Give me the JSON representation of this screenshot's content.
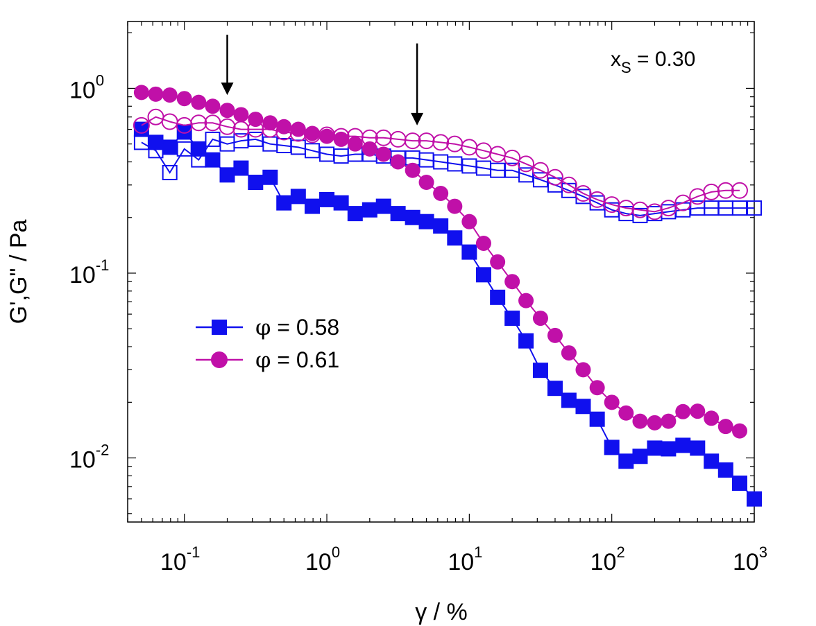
{
  "chart_data": {
    "type": "scatter",
    "xscale": "log",
    "yscale": "log",
    "xlim": [
      0.04,
      1000
    ],
    "ylim": [
      0.0045,
      2.3
    ],
    "xlabel": "γ / %",
    "ylabel": "G',G\" / Pa",
    "x_ticks": [
      {
        "value": 0.1,
        "base": "10",
        "exp": "-1"
      },
      {
        "value": 1,
        "base": "10",
        "exp": "0"
      },
      {
        "value": 10,
        "base": "10",
        "exp": "1"
      },
      {
        "value": 100,
        "base": "10",
        "exp": "2"
      },
      {
        "value": 1000,
        "base": "10",
        "exp": "3"
      }
    ],
    "y_ticks": [
      {
        "value": 0.01,
        "base": "10",
        "exp": "-2"
      },
      {
        "value": 0.1,
        "base": "10",
        "exp": "-1"
      },
      {
        "value": 1,
        "base": "10",
        "exp": "0"
      }
    ],
    "annotation": {
      "label": "x",
      "sub": "S",
      "rest": " = 0.30"
    },
    "arrows": [
      {
        "x": 0.2,
        "y_top": 1.95,
        "y_tip": 0.92
      },
      {
        "x": 4.3,
        "y_top": 1.75,
        "y_tip": 0.63
      }
    ],
    "legend": [
      {
        "symbol": "φ",
        "label": " = 0.58"
      },
      {
        "symbol": "φ",
        "label": " = 0.61"
      }
    ],
    "series": [
      {
        "name": "φ = 0.58 G'",
        "color": "#1010ee",
        "marker": "square",
        "filled": true,
        "x": [
          0.05,
          0.063,
          0.079,
          0.1,
          0.126,
          0.158,
          0.2,
          0.25,
          0.316,
          0.4,
          0.5,
          0.63,
          0.79,
          1.0,
          1.26,
          1.58,
          2.0,
          2.5,
          3.16,
          4.0,
          5.0,
          6.3,
          7.9,
          10,
          12.6,
          15.8,
          20,
          25,
          31.6,
          40,
          50,
          63,
          79,
          100,
          126,
          158,
          200,
          250,
          316,
          400,
          500,
          630,
          790,
          1000
        ],
        "y": [
          0.6,
          0.51,
          0.48,
          0.58,
          0.47,
          0.41,
          0.34,
          0.37,
          0.31,
          0.33,
          0.24,
          0.26,
          0.23,
          0.25,
          0.24,
          0.21,
          0.22,
          0.23,
          0.21,
          0.2,
          0.19,
          0.18,
          0.155,
          0.13,
          0.098,
          0.074,
          0.057,
          0.043,
          0.0298,
          0.0238,
          0.0205,
          0.019,
          0.0162,
          0.0114,
          0.0096,
          0.0102,
          0.0113,
          0.0112,
          0.0117,
          0.0113,
          0.0096,
          0.0086,
          0.0073,
          0.006
        ]
      },
      {
        "name": "φ = 0.58 G\"",
        "color": "#1010ee",
        "marker": "square",
        "filled": false,
        "x": [
          0.05,
          0.063,
          0.079,
          0.1,
          0.126,
          0.158,
          0.2,
          0.25,
          0.316,
          0.4,
          0.5,
          0.63,
          0.79,
          1.0,
          1.26,
          1.58,
          2.0,
          2.5,
          3.16,
          4.0,
          5.0,
          6.3,
          7.9,
          10,
          12.6,
          15.8,
          20,
          25,
          31.6,
          40,
          50,
          63,
          79,
          100,
          126,
          158,
          200,
          250,
          316,
          400,
          500,
          630,
          790,
          1000
        ],
        "y": [
          0.51,
          0.46,
          0.35,
          0.47,
          0.41,
          0.53,
          0.5,
          0.52,
          0.53,
          0.5,
          0.49,
          0.48,
          0.46,
          0.44,
          0.43,
          0.44,
          0.44,
          0.43,
          0.42,
          0.42,
          0.41,
          0.4,
          0.39,
          0.38,
          0.37,
          0.36,
          0.36,
          0.34,
          0.32,
          0.3,
          0.28,
          0.26,
          0.24,
          0.22,
          0.21,
          0.205,
          0.21,
          0.215,
          0.22,
          0.225,
          0.225,
          0.225,
          0.225,
          0.225
        ]
      },
      {
        "name": "φ = 0.61 G'",
        "color": "#c010a8",
        "marker": "circle",
        "filled": true,
        "x": [
          0.05,
          0.063,
          0.079,
          0.1,
          0.126,
          0.158,
          0.2,
          0.25,
          0.316,
          0.4,
          0.5,
          0.63,
          0.79,
          1.0,
          1.26,
          1.58,
          2.0,
          2.5,
          3.16,
          4.0,
          5.0,
          6.3,
          7.9,
          10,
          12.6,
          15.8,
          20,
          25,
          31.6,
          40,
          50,
          63,
          79,
          100,
          126,
          158,
          200,
          250,
          316,
          400,
          500,
          630,
          790
        ],
        "y": [
          0.95,
          0.93,
          0.92,
          0.88,
          0.84,
          0.8,
          0.76,
          0.72,
          0.68,
          0.65,
          0.62,
          0.6,
          0.57,
          0.55,
          0.53,
          0.5,
          0.47,
          0.44,
          0.4,
          0.36,
          0.31,
          0.27,
          0.23,
          0.19,
          0.145,
          0.115,
          0.09,
          0.071,
          0.057,
          0.046,
          0.037,
          0.03,
          0.024,
          0.02,
          0.0175,
          0.0158,
          0.0155,
          0.0158,
          0.0178,
          0.0179,
          0.0164,
          0.0148,
          0.014
        ]
      },
      {
        "name": "φ = 0.61 G\"",
        "color": "#c010a8",
        "marker": "circle",
        "filled": false,
        "x": [
          0.05,
          0.063,
          0.079,
          0.1,
          0.126,
          0.158,
          0.2,
          0.25,
          0.316,
          0.4,
          0.5,
          0.63,
          0.79,
          1.0,
          1.26,
          1.58,
          2.0,
          2.5,
          3.16,
          4.0,
          5.0,
          6.3,
          7.9,
          10,
          12.6,
          15.8,
          20,
          25,
          31.6,
          40,
          50,
          63,
          79,
          100,
          126,
          158,
          200,
          250,
          316,
          400,
          500,
          630,
          790
        ],
        "y": [
          0.63,
          0.7,
          0.66,
          0.63,
          0.65,
          0.65,
          0.62,
          0.6,
          0.6,
          0.6,
          0.58,
          0.57,
          0.56,
          0.56,
          0.55,
          0.55,
          0.54,
          0.54,
          0.53,
          0.52,
          0.52,
          0.51,
          0.5,
          0.48,
          0.46,
          0.44,
          0.42,
          0.39,
          0.36,
          0.33,
          0.3,
          0.27,
          0.25,
          0.235,
          0.225,
          0.22,
          0.215,
          0.225,
          0.24,
          0.26,
          0.275,
          0.28,
          0.28
        ]
      }
    ]
  }
}
